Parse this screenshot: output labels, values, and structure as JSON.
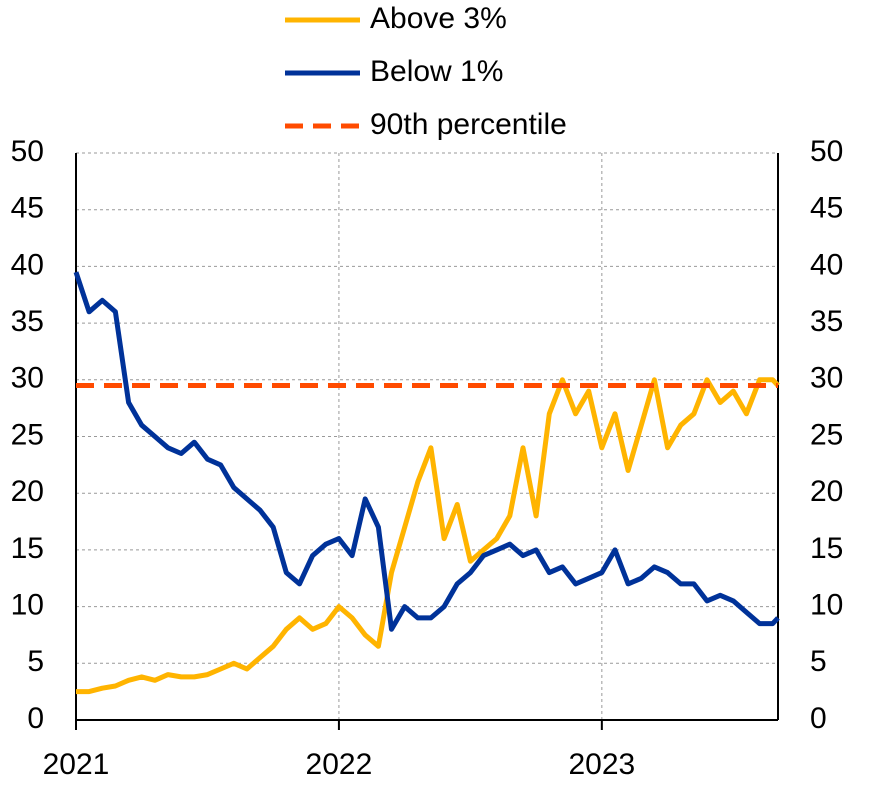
{
  "chart_data": {
    "type": "line",
    "x": [
      2021.0,
      2021.05,
      2021.1,
      2021.15,
      2021.2,
      2021.25,
      2021.3,
      2021.35,
      2021.4,
      2021.45,
      2021.5,
      2021.55,
      2021.6,
      2021.65,
      2021.7,
      2021.75,
      2021.8,
      2021.85,
      2021.9,
      2021.95,
      2022.0,
      2022.05,
      2022.1,
      2022.15,
      2022.2,
      2022.25,
      2022.3,
      2022.35,
      2022.4,
      2022.45,
      2022.5,
      2022.55,
      2022.6,
      2022.65,
      2022.7,
      2022.75,
      2022.8,
      2022.85,
      2022.9,
      2022.95,
      2023.0,
      2023.05,
      2023.1,
      2023.15,
      2023.2,
      2023.25,
      2023.3,
      2023.35,
      2023.4,
      2023.45,
      2023.5,
      2023.55,
      2023.6,
      2023.65,
      2023.67
    ],
    "series": [
      {
        "name": "Above 3%",
        "color": "#ffb400",
        "values": [
          2.5,
          2.5,
          2.8,
          3,
          3.5,
          3.8,
          3.5,
          4,
          3.8,
          3.8,
          4,
          4.5,
          5,
          4.5,
          5.5,
          6.5,
          8,
          9,
          8,
          8.5,
          10,
          9,
          7.5,
          6.5,
          13,
          17,
          21,
          24,
          16,
          19,
          14,
          15,
          16,
          18,
          24,
          18,
          27,
          30,
          27,
          29,
          24,
          27,
          22,
          26,
          30,
          24,
          26,
          27,
          30,
          28,
          29,
          27,
          30,
          30,
          29.5
        ]
      },
      {
        "name": "Below 1%",
        "color": "#003299",
        "values": [
          39.5,
          36,
          37,
          36,
          28,
          26,
          25,
          24,
          23.5,
          24.5,
          23,
          22.5,
          20.5,
          19.5,
          18.5,
          17,
          13,
          12,
          14.5,
          15.5,
          16,
          14.5,
          19.5,
          17,
          8,
          10,
          9,
          9,
          10,
          12,
          13,
          14.5,
          15,
          15.5,
          14.5,
          15,
          13,
          13.5,
          12,
          12.5,
          13,
          15,
          12,
          12.5,
          13.5,
          13,
          12,
          12,
          10.5,
          11,
          10.5,
          9.5,
          8.5,
          8.5,
          9
        ]
      }
    ],
    "hlines": [
      {
        "name": "90th percentile",
        "value": 29.5,
        "color": "#ff4b00",
        "dashed": true
      }
    ],
    "xlim": [
      2021,
      2023.67
    ],
    "xticks": [
      2021,
      2022,
      2023
    ],
    "ylim": [
      0,
      50
    ],
    "yticks": [
      0,
      5,
      10,
      15,
      20,
      25,
      30,
      35,
      40,
      45,
      50
    ],
    "y2lim": [
      0,
      50
    ],
    "y2ticks": [
      0,
      5,
      10,
      15,
      20,
      25,
      30,
      35,
      40,
      45,
      50
    ],
    "grid": true
  }
}
